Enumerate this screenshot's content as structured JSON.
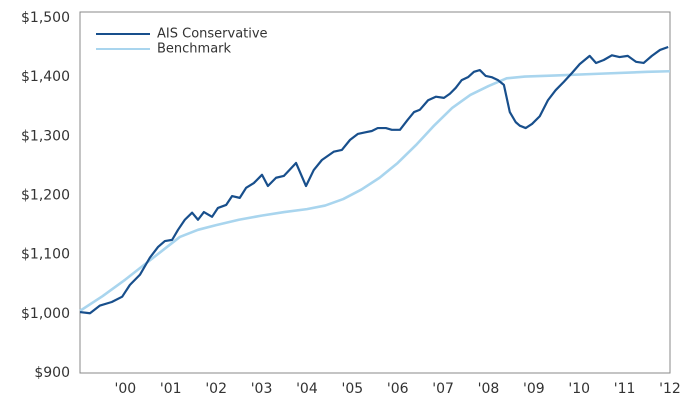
{
  "chart_data": {
    "type": "line",
    "series": [
      {
        "name": "AIS Conservative",
        "color": "#184f8c",
        "x": [
          1999.0,
          1999.22,
          1999.44,
          1999.7,
          1999.93,
          2000.1,
          2000.32,
          2000.54,
          2000.72,
          2000.87,
          2001.03,
          2001.16,
          2001.31,
          2001.47,
          2001.6,
          2001.73,
          2001.91,
          2002.04,
          2002.22,
          2002.35,
          2002.52,
          2002.66,
          2002.83,
          2003.01,
          2003.14,
          2003.32,
          2003.49,
          2003.76,
          2003.98,
          2004.15,
          2004.33,
          2004.59,
          2004.77,
          2004.95,
          2005.12,
          2005.3,
          2005.43,
          2005.56,
          2005.74,
          2005.87,
          2006.05,
          2006.22,
          2006.36,
          2006.49,
          2006.67,
          2006.84,
          2007.02,
          2007.15,
          2007.28,
          2007.41,
          2007.55,
          2007.68,
          2007.81,
          2007.94,
          2008.07,
          2008.21,
          2008.34,
          2008.47,
          2008.6,
          2008.69,
          2008.82,
          2008.96,
          2009.13,
          2009.31,
          2009.48,
          2009.66,
          2009.84,
          2010.01,
          2010.23,
          2010.37,
          2010.54,
          2010.72,
          2010.89,
          2011.07,
          2011.25,
          2011.42,
          2011.6,
          2011.78,
          2011.96
        ],
        "values": [
          1003,
          1001,
          1014,
          1020,
          1029,
          1049,
          1066,
          1095,
          1113,
          1123,
          1125,
          1142,
          1159,
          1171,
          1159,
          1172,
          1164,
          1179,
          1184,
          1199,
          1196,
          1213,
          1221,
          1235,
          1216,
          1230,
          1233,
          1255,
          1216,
          1243,
          1260,
          1274,
          1277,
          1294,
          1304,
          1307,
          1309,
          1314,
          1314,
          1311,
          1311,
          1328,
          1341,
          1345,
          1361,
          1367,
          1365,
          1372,
          1382,
          1395,
          1400,
          1409,
          1412,
          1402,
          1400,
          1395,
          1387,
          1341,
          1324,
          1318,
          1314,
          1321,
          1334,
          1361,
          1378,
          1392,
          1407,
          1422,
          1436,
          1424,
          1429,
          1437,
          1434,
          1436,
          1426,
          1424,
          1436,
          1446,
          1451
        ]
      },
      {
        "name": "Benchmark",
        "color": "#a9d5ee",
        "x": [
          1999.0,
          1999.5,
          2000.0,
          2000.5,
          2000.9,
          2001.2,
          2001.6,
          2002.0,
          2002.5,
          2003.0,
          2003.5,
          2004.0,
          2004.4,
          2004.8,
          2005.2,
          2005.6,
          2006.0,
          2006.4,
          2006.8,
          2007.2,
          2007.6,
          2008.0,
          2008.4,
          2008.8,
          2009.5,
          2010.5,
          2011.5,
          2012.0
        ],
        "values": [
          1005,
          1030,
          1058,
          1088,
          1112,
          1130,
          1142,
          1150,
          1159,
          1166,
          1172,
          1177,
          1183,
          1194,
          1210,
          1230,
          1255,
          1285,
          1318,
          1348,
          1370,
          1385,
          1398,
          1401,
          1403,
          1406,
          1409,
          1410
        ]
      }
    ],
    "xlim": [
      1999,
      2012
    ],
    "xticks": [
      {
        "value": 2000,
        "label": "'00"
      },
      {
        "value": 2001,
        "label": "'01"
      },
      {
        "value": 2002,
        "label": "'02"
      },
      {
        "value": 2003,
        "label": "'03"
      },
      {
        "value": 2004,
        "label": "'04"
      },
      {
        "value": 2005,
        "label": "'05"
      },
      {
        "value": 2006,
        "label": "'06"
      },
      {
        "value": 2007,
        "label": "'07"
      },
      {
        "value": 2008,
        "label": "'08"
      },
      {
        "value": 2009,
        "label": "'09"
      },
      {
        "value": 2010,
        "label": "'10"
      },
      {
        "value": 2011,
        "label": "'11"
      },
      {
        "value": 2012,
        "label": "'12"
      }
    ],
    "ylim": [
      900,
      1500
    ],
    "yticks": [
      {
        "value": 900,
        "label": "$900"
      },
      {
        "value": 1000,
        "label": "$1,000"
      },
      {
        "value": 1100,
        "label": "$1,100"
      },
      {
        "value": 1200,
        "label": "$1,200"
      },
      {
        "value": 1300,
        "label": "$1,300"
      },
      {
        "value": 1400,
        "label": "$1,400"
      },
      {
        "value": 1500,
        "label": "$1,500"
      }
    ],
    "grid": false,
    "legend": "upper-left"
  }
}
